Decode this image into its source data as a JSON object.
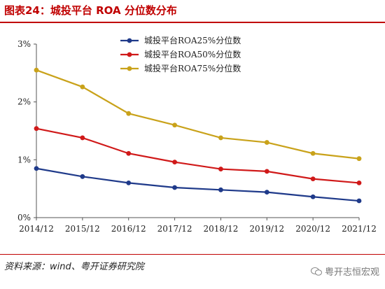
{
  "header": {
    "title": "图表24：城投平台 ROA 分位数分布"
  },
  "footer": {
    "source": "资料来源：wind、粤开证券研究院",
    "watermark": "粤开志恒宏观"
  },
  "chart_data": {
    "type": "line",
    "x": [
      "2014/12",
      "2015/12",
      "2016/12",
      "2017/12",
      "2018/12",
      "2019/12",
      "2020/12",
      "2021/12"
    ],
    "ylim": [
      0,
      3
    ],
    "yticks": [
      0,
      1,
      2,
      3
    ],
    "ytick_labels": [
      "0%",
      "1%",
      "2%",
      "3%"
    ],
    "grid": false,
    "legend_position": "top-center",
    "series": [
      {
        "name": "城投平台ROA25%分位数",
        "color": "#1f3a8a",
        "values": [
          0.85,
          0.71,
          0.6,
          0.52,
          0.48,
          0.44,
          0.36,
          0.29
        ]
      },
      {
        "name": "城投平台ROA50%分位数",
        "color": "#d01919",
        "values": [
          1.54,
          1.38,
          1.11,
          0.96,
          0.84,
          0.8,
          0.67,
          0.6
        ]
      },
      {
        "name": "城投平台ROA75%分位数",
        "color": "#c9a21a",
        "values": [
          2.55,
          2.26,
          1.8,
          1.6,
          1.38,
          1.3,
          1.11,
          1.02
        ]
      }
    ]
  }
}
